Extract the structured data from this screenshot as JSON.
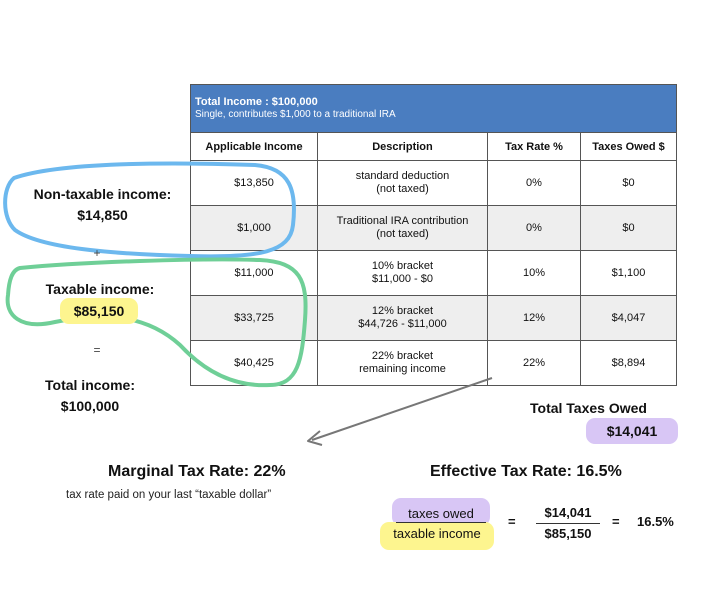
{
  "table": {
    "title": "Total Income : $100,000",
    "subtitle": "Single, contributes $1,000 to a traditional IRA",
    "columns": [
      "Applicable Income",
      "Description",
      "Tax Rate %",
      "Taxes Owed $"
    ],
    "rows": [
      {
        "income": "$13,850",
        "desc1": "standard deduction",
        "desc2": "(not taxed)",
        "rate": "0%",
        "owed": "$0"
      },
      {
        "income": "$1,000",
        "desc1": "Traditional IRA contribution",
        "desc2": "(not taxed)",
        "rate": "0%",
        "owed": "$0"
      },
      {
        "income": "$11,000",
        "desc1": "10% bracket",
        "desc2": "$11,000 - $0",
        "rate": "10%",
        "owed": "$1,100"
      },
      {
        "income": "$33,725",
        "desc1": "12% bracket",
        "desc2": "$44,726 - $11,000",
        "rate": "12%",
        "owed": "$4,047"
      },
      {
        "income": "$40,425",
        "desc1": "22% bracket",
        "desc2": "remaining income",
        "rate": "22%",
        "owed": "$8,894"
      }
    ]
  },
  "left": {
    "non_taxable_label": "Non-taxable income:",
    "non_taxable_value": "$14,850",
    "plus": "+",
    "taxable_label": "Taxable income:",
    "taxable_value": "$85,150",
    "equals": "=",
    "total_label": "Total income:",
    "total_value": "$100,000"
  },
  "total_owed": {
    "label": "Total Taxes Owed",
    "value": "$14,041"
  },
  "marginal": {
    "title": "Marginal Tax Rate: 22%",
    "note": "tax rate paid on your last “taxable dollar”"
  },
  "effective": {
    "title": "Effective Tax Rate: 16.5%",
    "num_word": "taxes owed",
    "den_word": "taxable income",
    "eq1": "=",
    "num_val": "$14,041",
    "den_val": "$85,150",
    "eq2": "=",
    "result": "16.5%"
  },
  "colors": {
    "header_blue": "#4a7dc0",
    "outline_blue": "#6cb8ee",
    "outline_green": "#6fcf97",
    "highlight_yellow": "#fdf58f",
    "highlight_purple": "#d8c6f5",
    "arrow_gray": "#777777"
  }
}
